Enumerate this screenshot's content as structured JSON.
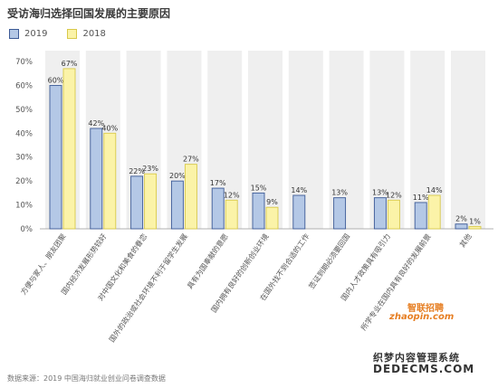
{
  "chart_data": {
    "type": "bar",
    "title": "受访海归选择回国发展的主要原因",
    "categories": [
      "方便与家人、朋友团聚",
      "国内经济发展形势较好",
      "对中国文化和美食的眷恋",
      "国外的政治或社会环境不利于留学生发展",
      "具有为国奉献的意愿",
      "国内拥有良好的创新创业环境",
      "在国外找不到合适的工作",
      "签证到期必须要回国",
      "国内人才政策具有吸引力",
      "所学专业在国内具有良好的发展前景",
      "其他"
    ],
    "series": [
      {
        "name": "2019",
        "values": [
          60,
          42,
          22,
          20,
          17,
          15,
          14,
          13,
          13,
          11,
          2
        ],
        "color": "#b4c8e6",
        "border": "#3c5a96"
      },
      {
        "name": "2018",
        "values": [
          67,
          40,
          23,
          27,
          12,
          9,
          null,
          null,
          12,
          14,
          1
        ],
        "color": "#fbf3a8",
        "border": "#d8c94a"
      }
    ],
    "value_labels": [
      [
        "60%",
        "42%",
        "22%",
        "20%",
        "17%",
        "15%",
        "14%",
        "13%",
        "13%",
        "11%",
        "2%"
      ],
      [
        "67%",
        "40%",
        "23%",
        "27%",
        "12%",
        "9%",
        "",
        "",
        "12%",
        "14%",
        "1%"
      ]
    ],
    "yticks": [
      "0%",
      "10%",
      "20%",
      "30%",
      "40%",
      "50%",
      "60%",
      "70%"
    ],
    "ylim": [
      0,
      70
    ],
    "legend_position": "top-left",
    "grid": false,
    "column_background": "#efefef"
  },
  "source_note": "数据来源：2019 中国海归就业创业问卷调查数据",
  "watermark": {
    "logo_cn": "智联招聘",
    "logo_en": "zhaopin.com",
    "site_name": "织梦内容管理系统",
    "site_url": "DEDECMS.COM"
  }
}
